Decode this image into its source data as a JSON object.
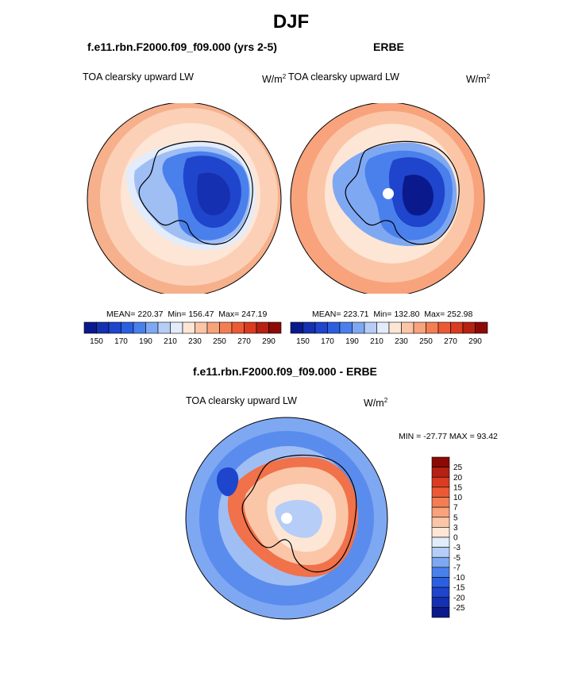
{
  "figure": {
    "title": "DJF",
    "model_case": "f.e11.rbn.F2000.f09_f09.000 (yrs 2-5)",
    "obs_name": "ERBE",
    "diff_title": "f.e11.rbn.F2000.f09_f09.000 - ERBE"
  },
  "panels": {
    "model": {
      "variable": "TOA clearsky upward LW",
      "units_main": "W/m",
      "units_sup": "2",
      "mean_label": "MEAN= 220.37",
      "min_label": "Min= 156.47",
      "max_label": "Max= 247.19"
    },
    "obs": {
      "variable": "TOA clearsky upward LW",
      "units_main": "W/m",
      "units_sup": "2",
      "mean_label": "MEAN= 223.71",
      "min_label": "Min= 132.80",
      "max_label": "Max= 252.98"
    },
    "diff": {
      "variable": "TOA clearsky upward LW",
      "units_main": "W/m",
      "units_sup": "2",
      "minmax_label": "MIN = -27.77 MAX =  93.42"
    }
  },
  "colorbars": {
    "absolute": {
      "colors": [
        "#0a1a8c",
        "#1530b0",
        "#1f45cc",
        "#2c5fe0",
        "#4a80ec",
        "#7fa8f2",
        "#b5cdf7",
        "#e2ecfb",
        "#fde6d6",
        "#fbc6a7",
        "#f8a37c",
        "#f47e54",
        "#ec5a35",
        "#d93c20",
        "#b52112",
        "#8b0a06"
      ],
      "tick_labels": [
        "150",
        "170",
        "190",
        "210",
        "230",
        "250",
        "270",
        "290"
      ]
    },
    "difference": {
      "colors": [
        "#8b0a06",
        "#b52112",
        "#d93c20",
        "#ec5a35",
        "#f47e54",
        "#f8a37c",
        "#fbc6a7",
        "#fde6d6",
        "#e2ecfb",
        "#b5cdf7",
        "#7fa8f2",
        "#4a80ec",
        "#2c5fe0",
        "#1f45cc",
        "#1530b0",
        "#0a1a8c"
      ],
      "tick_labels": [
        "25",
        "20",
        "15",
        "10",
        "7",
        "5",
        "3",
        "0",
        "-3",
        "-5",
        "-7",
        "-10",
        "-15",
        "-20",
        "-25"
      ]
    }
  },
  "colors": {
    "ocean_warm": "#f6b08b",
    "ocean_mid": "#fbd0b6",
    "ice_deep": "#1f45cc",
    "ice_light": "#9fbef4",
    "diff_ocean": "#4a7fe8",
    "diff_coast": "#f0714a"
  }
}
